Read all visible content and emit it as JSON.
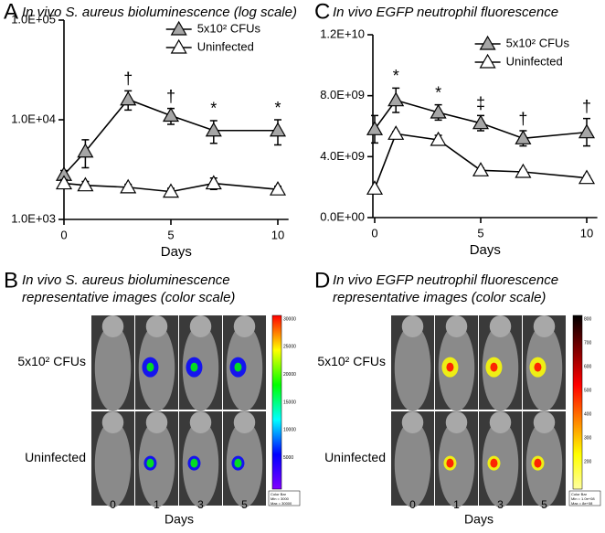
{
  "chart_data": [
    {
      "type": "line",
      "letter": "A",
      "title": "In vivo S. aureus bioluminescence (log scale)",
      "xlabel": "Days",
      "log_scale": true,
      "legend": "upper right",
      "xlim": [
        0,
        10.5
      ],
      "xticks": [
        0,
        5,
        10
      ],
      "ylim": [
        1000,
        100000
      ],
      "yticks": [
        {
          "value": 1000,
          "label": "1.0E+03"
        },
        {
          "value": 10000,
          "label": "1.0E+04"
        },
        {
          "value": 100000,
          "label": "1.0E+05"
        }
      ],
      "series": [
        {
          "name": "5x10² CFUs",
          "color": "#a6a6a6",
          "x": [
            0,
            1,
            3,
            5,
            7,
            10
          ],
          "values": [
            2800,
            4800,
            16000,
            11000,
            7800,
            7800
          ],
          "errors": [
            300,
            1500,
            3500,
            2000,
            2000,
            2200
          ]
        },
        {
          "name": "Uninfected",
          "color": "#ffffff",
          "x": [
            0,
            1,
            3,
            5,
            7,
            10
          ],
          "values": [
            2300,
            2200,
            2100,
            1900,
            2300,
            2000
          ],
          "errors": [
            200,
            200,
            150,
            150,
            300,
            150
          ]
        }
      ],
      "annotations": [
        {
          "x": 3,
          "text": "†"
        },
        {
          "x": 5,
          "text": "†"
        },
        {
          "x": 7,
          "text": "*"
        },
        {
          "x": 10,
          "text": "*"
        }
      ]
    },
    {
      "type": "line",
      "letter": "C",
      "title": "In vivo EGFP neutrophil fluorescence",
      "xlabel": "Days",
      "log_scale": false,
      "legend": "upper right",
      "xlim": [
        0,
        10.5
      ],
      "xticks": [
        0,
        5,
        10
      ],
      "ylim": [
        0,
        12000000000
      ],
      "yticks": [
        {
          "value": 0,
          "label": "0.0E+00"
        },
        {
          "value": 4000000000,
          "label": "4.0E+09"
        },
        {
          "value": 8000000000,
          "label": "8.0E+09"
        },
        {
          "value": 12000000000,
          "label": "1.2E+10"
        }
      ],
      "series": [
        {
          "name": "5x10² CFUs",
          "color": "#a6a6a6",
          "x": [
            0,
            1,
            3,
            5,
            7,
            10
          ],
          "values": [
            5800000000,
            7700000000,
            6900000000,
            6200000000,
            5200000000,
            5600000000
          ],
          "errors": [
            900000000,
            800000000,
            500000000,
            500000000,
            500000000,
            900000000
          ]
        },
        {
          "name": "Uninfected",
          "color": "#ffffff",
          "x": [
            0,
            1,
            3,
            5,
            7,
            10
          ],
          "values": [
            1900000000,
            5500000000,
            5100000000,
            3100000000,
            3000000000,
            2600000000
          ],
          "errors": [
            100000000,
            150000000,
            300000000,
            150000000,
            150000000,
            150000000
          ]
        }
      ],
      "annotations": [
        {
          "x": 1,
          "text": "*"
        },
        {
          "x": 3,
          "text": "*"
        },
        {
          "x": 5,
          "text": "‡"
        },
        {
          "x": 7,
          "text": "†"
        },
        {
          "x": 10,
          "text": "†"
        }
      ]
    }
  ],
  "image_panels": [
    {
      "letter": "B",
      "title": [
        "In vivo S. aureus bioluminescence",
        "representative images (color scale)"
      ],
      "rows": [
        "5x10² CFUs",
        "Uninfected"
      ],
      "columns": [
        "0",
        "1",
        "3",
        "5"
      ],
      "xlabel": "Days",
      "colorbar_colors": [
        "#ff0000",
        "#ffff00",
        "#00ff00",
        "#00ffff",
        "#0000ff",
        "#8000ff"
      ],
      "colorbar_ticks": [
        "30000",
        "25000",
        "20000",
        "15000",
        "10000",
        "5000"
      ],
      "colorbar_note": [
        "Color Bar",
        "Min = 3000",
        "Max = 30000"
      ]
    },
    {
      "letter": "D",
      "title": [
        "In vivo EGFP neutrophil fluorescence",
        "representative images (color scale)"
      ],
      "rows": [
        "5x10² CFUs",
        "Uninfected"
      ],
      "columns": [
        "0",
        "1",
        "3",
        "5"
      ],
      "xlabel": "Days",
      "colorbar_colors": [
        "#000000",
        "#800000",
        "#ff0000",
        "#ff8000",
        "#ffff00",
        "#ffffa0"
      ],
      "colorbar_ticks": [
        "800",
        "700",
        "600",
        "500",
        "400",
        "300",
        "200"
      ],
      "colorbar_note": [
        "Color Bar",
        "Min = 1.0e+08",
        "Max = 8e+08"
      ]
    }
  ]
}
